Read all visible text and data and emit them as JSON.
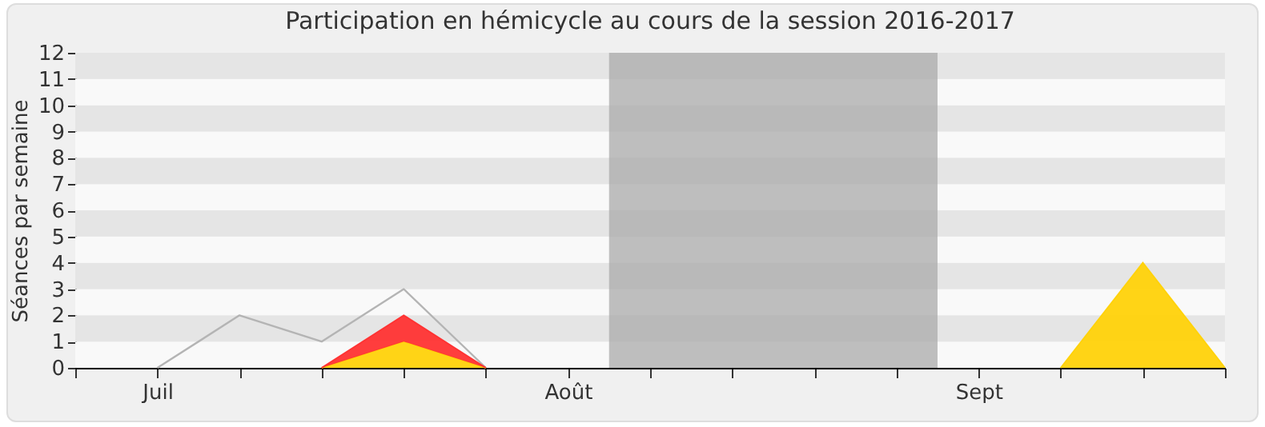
{
  "chart_data": {
    "type": "area",
    "title": "Participation en hémicycle au cours de la session 2016-2017",
    "ylabel": "Séances par semaine",
    "categories": [
      null,
      "Juil",
      null,
      null,
      null,
      null,
      "Août",
      null,
      null,
      null,
      null,
      "Sept",
      null,
      null,
      null
    ],
    "ylim": [
      0,
      12
    ],
    "yticks": [
      0,
      1,
      2,
      3,
      4,
      5,
      6,
      7,
      8,
      9,
      10,
      11,
      12
    ],
    "stacked": true,
    "series": [
      {
        "type": "line",
        "color": "#b4b4b4",
        "values": [
          null,
          0,
          2,
          1,
          3,
          0,
          null,
          null,
          null,
          null,
          null,
          null,
          null,
          null,
          null
        ]
      },
      {
        "type": "area",
        "color": "#ffd20a",
        "values": [
          null,
          null,
          null,
          0,
          1,
          0,
          null,
          null,
          null,
          null,
          null,
          null,
          0,
          4,
          0
        ]
      },
      {
        "type": "area",
        "color": "#ff3333",
        "values": [
          null,
          null,
          null,
          0,
          1,
          0,
          null,
          null,
          null,
          null,
          null,
          null,
          null,
          null,
          null
        ]
      }
    ]
  }
}
